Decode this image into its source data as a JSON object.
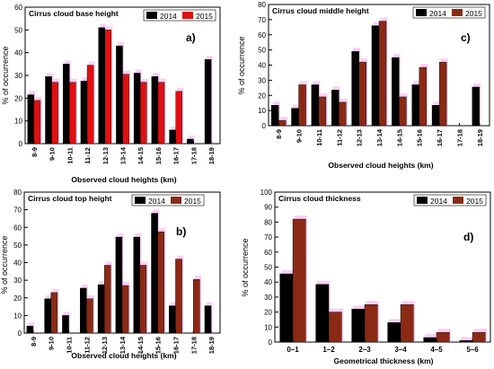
{
  "colors": {
    "y2014": "#000000",
    "y2015": "#e01010",
    "y2015_alt": "#8b2a14",
    "ghost": "#f6a8ee"
  },
  "chart_data": [
    {
      "id": "a",
      "type": "bar",
      "title": "Cirrus cloud base height",
      "panel_label": "a)",
      "xlabel": "Observed cloud heights (km)",
      "ylabel": "% of occurrence",
      "ylim": [
        0,
        60
      ],
      "yticks": [
        "0",
        "10",
        "20",
        "30",
        "40",
        "50",
        "60"
      ],
      "categories": [
        "8-9",
        "9-10",
        "10-11",
        "11-12",
        "12-13",
        "13-14",
        "14-15",
        "15-16",
        "16-17",
        "17-18",
        "18-19"
      ],
      "legend": [
        "2014",
        "2015"
      ],
      "legend_position": "top-right",
      "series": [
        {
          "name": "2014",
          "color": "#000000",
          "values": [
            21.5,
            29.5,
            35,
            27.5,
            51,
            43,
            31,
            29.5,
            6,
            2,
            37
          ]
        },
        {
          "name": "2015",
          "color": "#e01010",
          "values": [
            19,
            27,
            27,
            34.5,
            50,
            30.5,
            27,
            27,
            23,
            0,
            0
          ]
        }
      ]
    },
    {
      "id": "c",
      "type": "bar",
      "title": "Cirrus cloud middle height",
      "panel_label": "c)",
      "xlabel": "Observed cloud heights (km)",
      "ylabel": "% of occurrence",
      "ylim": [
        0,
        80
      ],
      "yticks": [
        "0",
        "10",
        "20",
        "30",
        "40",
        "50",
        "60",
        "70",
        "80"
      ],
      "categories": [
        "8-9",
        "9-10",
        "10-11",
        "11-12",
        "12-13",
        "13-14",
        "14-15",
        "15-16",
        "16-17",
        "17-18",
        "18-19"
      ],
      "legend": [
        "2014",
        "2015"
      ],
      "legend_position": "top-right",
      "series": [
        {
          "name": "2014",
          "color": "#000000",
          "values": [
            13.5,
            11.5,
            27,
            23.5,
            49,
            66,
            45,
            27,
            13.5,
            0,
            25.5
          ]
        },
        {
          "name": "2015",
          "color": "#e01010",
          "values": [
            3.5,
            27,
            19,
            15.5,
            42,
            69,
            19,
            38.5,
            42,
            0,
            0
          ]
        }
      ]
    },
    {
      "id": "b",
      "type": "bar",
      "title": "Cirrus cloud top height",
      "panel_label": "b)",
      "xlabel": "Observed cloud heights (km)",
      "ylabel": "% of occurrence",
      "ylim": [
        0,
        80
      ],
      "yticks": [
        "0",
        "10",
        "20",
        "30",
        "40",
        "50",
        "60",
        "70",
        "80"
      ],
      "categories": [
        "8-9",
        "9-10",
        "10-11",
        "11-12",
        "12-13",
        "13-14",
        "14-15",
        "15-16",
        "16-17",
        "17-18",
        "18-19"
      ],
      "legend": [
        "2014",
        "2015"
      ],
      "legend_position": "top-left",
      "series": [
        {
          "name": "2014",
          "color": "#000000",
          "values": [
            4,
            19.5,
            10,
            25.5,
            27.5,
            54.5,
            54.5,
            68,
            15.5,
            0,
            15.5
          ]
        },
        {
          "name": "2015",
          "color": "#e01010",
          "values": [
            0,
            23,
            0,
            19.5,
            38.5,
            27,
            38.5,
            57.5,
            42,
            30.5,
            0
          ]
        }
      ]
    },
    {
      "id": "d",
      "type": "bar",
      "title": "Cirrus cloud thickness",
      "panel_label": "d)",
      "xlabel": "Geometrical thickness  (km)",
      "ylabel": "% of occurrence",
      "ylim": [
        0,
        100
      ],
      "yticks": [
        "0",
        "10",
        "20",
        "30",
        "40",
        "50",
        "60",
        "70",
        "80",
        "90",
        "100"
      ],
      "categories": [
        "0–1",
        "1–2",
        "2–3",
        "3–4",
        "4–5",
        "5–6"
      ],
      "legend": [
        "2014",
        "2015"
      ],
      "legend_position": "top-right",
      "series": [
        {
          "name": "2014",
          "color": "#000000",
          "values": [
            45.5,
            38.5,
            22,
            13,
            3,
            1
          ]
        },
        {
          "name": "2015",
          "color": "#e01010",
          "values": [
            82,
            20,
            25,
            25,
            6.5,
            6.5
          ]
        }
      ]
    }
  ]
}
